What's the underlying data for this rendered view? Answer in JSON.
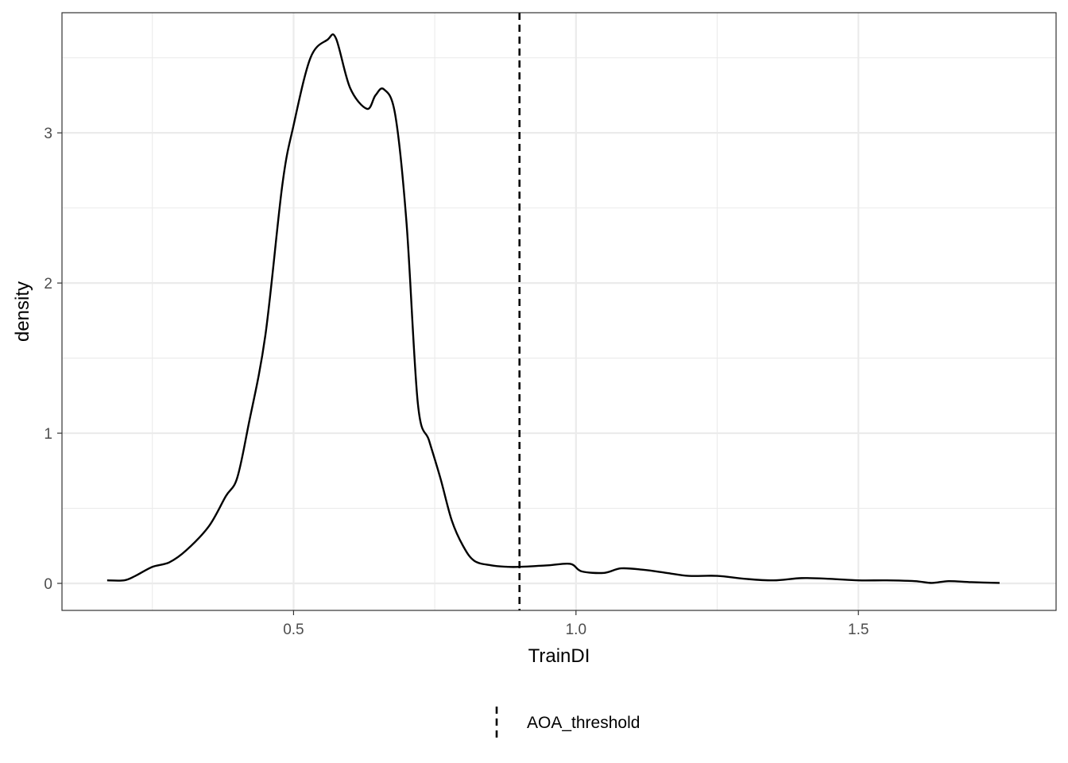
{
  "chart_data": {
    "type": "line",
    "subtype": "density",
    "xlabel": "TrainDI",
    "ylabel": "density",
    "xlim": [
      0.09,
      1.85
    ],
    "ylim": [
      -0.18,
      3.8
    ],
    "x_ticks": [
      0.5,
      1.0,
      1.5
    ],
    "x_tick_labels": [
      "0.5",
      "1.0",
      "1.5"
    ],
    "y_ticks": [
      0,
      1,
      2,
      3
    ],
    "y_tick_labels": [
      "0",
      "1",
      "2",
      "3"
    ],
    "grid": true,
    "series": [
      {
        "x": [
          0.17,
          0.2,
          0.22,
          0.25,
          0.28,
          0.31,
          0.35,
          0.38,
          0.4,
          0.42,
          0.45,
          0.48,
          0.5,
          0.53,
          0.56,
          0.575,
          0.6,
          0.63,
          0.645,
          0.66,
          0.68,
          0.7,
          0.72,
          0.74,
          0.76,
          0.78,
          0.8,
          0.82,
          0.85,
          0.88,
          0.9,
          0.95,
          0.99,
          1.01,
          1.05,
          1.08,
          1.12,
          1.16,
          1.2,
          1.25,
          1.3,
          1.35,
          1.4,
          1.45,
          1.5,
          1.55,
          1.6,
          1.63,
          1.66,
          1.7,
          1.75
        ],
        "y": [
          0.02,
          0.02,
          0.05,
          0.11,
          0.14,
          0.22,
          0.38,
          0.58,
          0.7,
          1.05,
          1.65,
          2.65,
          3.05,
          3.5,
          3.62,
          3.63,
          3.3,
          3.16,
          3.25,
          3.29,
          3.12,
          2.4,
          1.2,
          0.95,
          0.7,
          0.42,
          0.25,
          0.15,
          0.12,
          0.11,
          0.11,
          0.12,
          0.13,
          0.08,
          0.07,
          0.1,
          0.09,
          0.07,
          0.05,
          0.05,
          0.03,
          0.02,
          0.035,
          0.03,
          0.02,
          0.02,
          0.015,
          0.003,
          0.015,
          0.008,
          0.003
        ]
      }
    ],
    "reference_lines": [
      {
        "name": "AOA_threshold",
        "x": 0.9,
        "style": "dashed"
      }
    ],
    "legend": {
      "position": "bottom",
      "items": [
        "AOA_threshold"
      ]
    }
  }
}
